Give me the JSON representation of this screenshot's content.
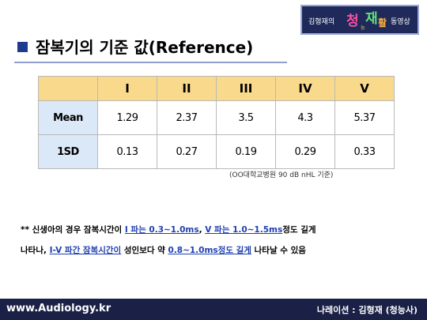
{
  "logo": {
    "name": "김형재의",
    "brand": [
      "청",
      "능",
      "재",
      "활"
    ],
    "suffix": "동영상"
  },
  "header": {
    "title": "잠복기의 기준 값(Reference)"
  },
  "table": {
    "columns": [
      "I",
      "II",
      "III",
      "IV",
      "V"
    ],
    "rows": [
      [
        "Mean",
        "1.29",
        "2.37",
        "3.5",
        "4.3",
        "5.37"
      ],
      [
        "1SD",
        "0.13",
        "0.27",
        "0.19",
        "0.29",
        "0.33"
      ]
    ]
  },
  "source": "(OO대학교병원 90 dB nHL 기준)",
  "notes": [
    [
      "** 신생아의 경우 잠복시간이 ",
      "I 파는 0.3~1.0ms",
      ", ",
      "V 파는 1.0~1.5ms",
      "정도 길게"
    ],
    [
      "나타나, ",
      "I-V 파간 잠복시간이",
      " 성인보다 약 ",
      "0.8~1.0ms정도 길게",
      " 나타날 수 있음"
    ]
  ],
  "footer": {
    "site": "www.Audiology.kr",
    "narration": "나레이션 : 김형재 (청능사)"
  }
}
